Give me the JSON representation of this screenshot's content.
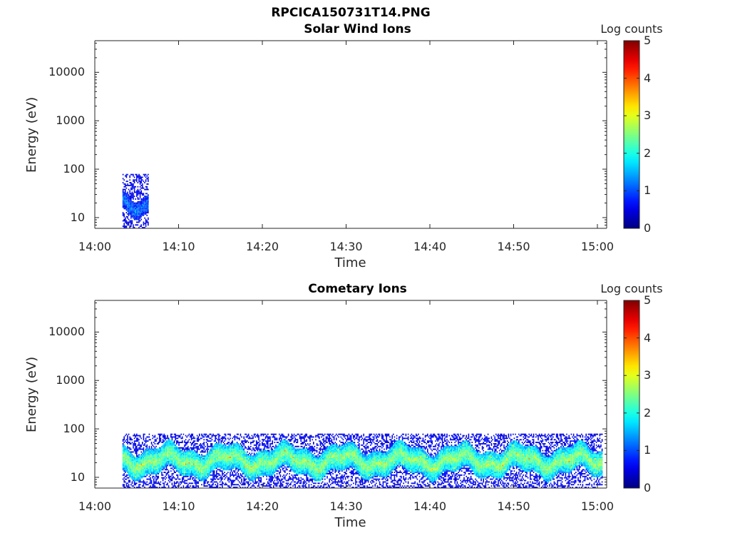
{
  "figure": {
    "title": "RPCICA150731T14.PNG"
  },
  "chart_data": [
    {
      "type": "heatmap",
      "title": "Solar Wind Ions",
      "xlabel": "Time",
      "ylabel": "Energy (eV)",
      "x_ticks": [
        "14:00",
        "14:10",
        "14:20",
        "14:30",
        "14:40",
        "14:50",
        "15:00"
      ],
      "xlim": [
        "14:00",
        "15:00"
      ],
      "y_scale": "log",
      "y_ticks": [
        "10",
        "100",
        "1000",
        "10000"
      ],
      "ylim": [
        6,
        45000
      ],
      "colorbar": {
        "title": "Log counts",
        "ticks": [
          "0",
          "1",
          "2",
          "3",
          "4",
          "5"
        ],
        "range": [
          0,
          5
        ],
        "colormap": "jet"
      },
      "data_segments": [
        {
          "start_min": 3.3,
          "end_min": 6.4,
          "energy_min_eV": 6,
          "energy_max_eV": 80,
          "core_energy_eV": [
            13,
            30
          ],
          "core_log_counts": 1.2,
          "noise_log_counts": 0.3
        }
      ]
    },
    {
      "type": "heatmap",
      "title": "Cometary Ions",
      "xlabel": "Time",
      "ylabel": "Energy (eV)",
      "x_ticks": [
        "14:00",
        "14:10",
        "14:20",
        "14:30",
        "14:40",
        "14:50",
        "15:00"
      ],
      "xlim": [
        "14:00",
        "15:00"
      ],
      "y_scale": "log",
      "y_ticks": [
        "10",
        "100",
        "1000",
        "10000"
      ],
      "ylim": [
        6,
        45000
      ],
      "colorbar": {
        "title": "Log counts",
        "ticks": [
          "0",
          "1",
          "2",
          "3",
          "4",
          "5"
        ],
        "range": [
          0,
          5
        ],
        "colormap": "jet"
      },
      "data_segments": [
        {
          "start_min": 3.3,
          "end_min": 60.5,
          "energy_min_eV": 6,
          "energy_max_eV": 80,
          "core_energy_eV": [
            12,
            40
          ],
          "core_log_counts": 2.6,
          "noise_log_counts": 0.3
        }
      ]
    }
  ]
}
